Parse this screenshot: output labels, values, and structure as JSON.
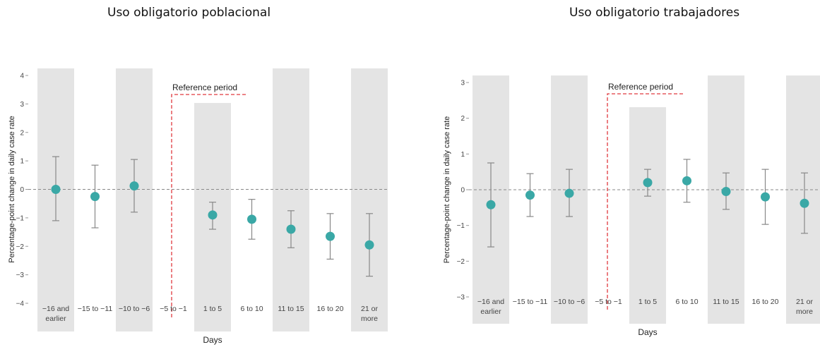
{
  "chart_data": [
    {
      "type": "scatter",
      "title": "Uso obligatorio poblacional",
      "xlabel": "Days",
      "ylabel": "Percentage-point change in daily case rate",
      "ylim": [
        -4,
        4
      ],
      "yticks": [
        "4",
        "3",
        "2",
        "1",
        "0",
        "−1",
        "−2",
        "−3",
        "−4"
      ],
      "categories": [
        "−16 and earlier",
        "−15 to −11",
        "−10 to −6",
        "−5 to −1",
        "1 to 5",
        "6 to 10",
        "11 to 15",
        "16 to 20",
        "21 or more"
      ],
      "annotation": "Reference period",
      "series": [
        {
          "values": [
            0.0,
            -0.25,
            0.12,
            null,
            -0.9,
            -1.05,
            -1.4,
            -1.65,
            -1.95
          ],
          "ci_low": [
            -1.1,
            -1.35,
            -0.8,
            null,
            -1.4,
            -1.75,
            -2.05,
            -2.45,
            -3.05
          ],
          "ci_high": [
            1.15,
            0.85,
            1.05,
            null,
            -0.45,
            -0.35,
            -0.75,
            -0.85,
            -0.85
          ]
        }
      ]
    },
    {
      "type": "scatter",
      "title": "Uso obligatorio trabajadores",
      "xlabel": "Days",
      "ylabel": "Percentage-point change in daily case rate",
      "ylim": [
        -3,
        3
      ],
      "yticks": [
        "3",
        "2",
        "1",
        "0",
        "−1",
        "−2",
        "−3"
      ],
      "categories": [
        "−16 and earlier",
        "−15 to −11",
        "−10 to −6",
        "−5 to −1",
        "1 to 5",
        "6 to 10",
        "11 to 15",
        "16 to 20",
        "21 or more"
      ],
      "annotation": "Reference period",
      "series": [
        {
          "values": [
            -0.42,
            -0.15,
            -0.1,
            null,
            0.2,
            0.25,
            -0.05,
            -0.2,
            -0.38
          ],
          "ci_low": [
            -1.6,
            -0.75,
            -0.75,
            null,
            -0.18,
            -0.35,
            -0.55,
            -0.97,
            -1.22
          ],
          "ci_high": [
            0.75,
            0.45,
            0.57,
            null,
            0.57,
            0.85,
            0.47,
            0.57,
            0.47
          ]
        }
      ]
    }
  ]
}
